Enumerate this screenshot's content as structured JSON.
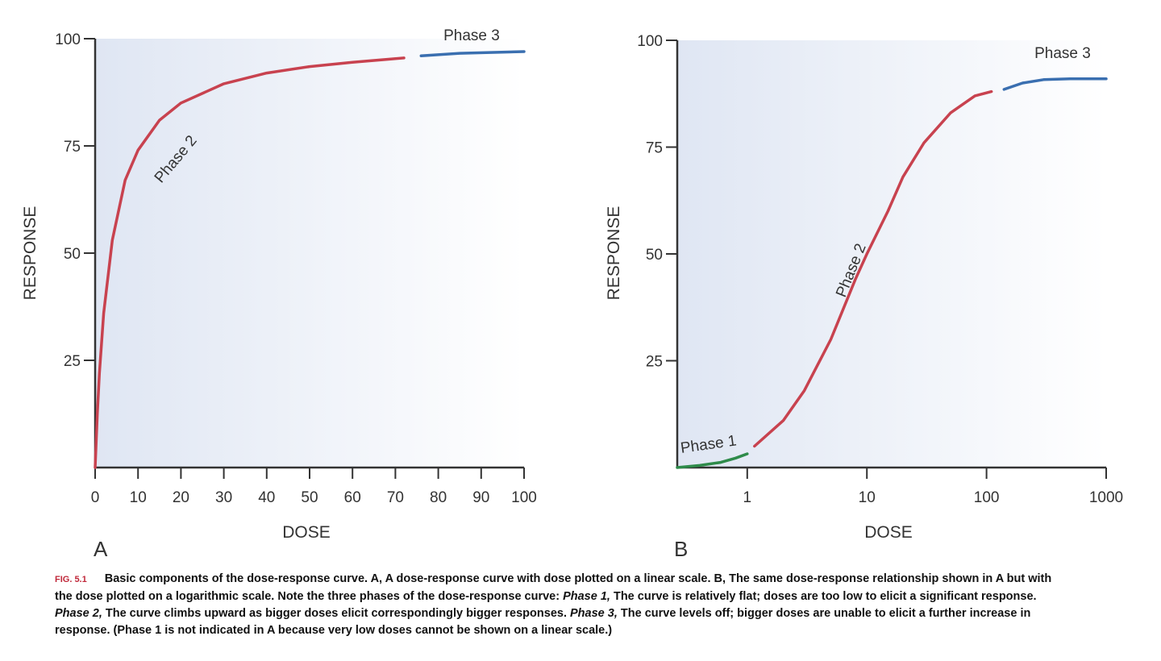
{
  "caption": {
    "fig_label": "FIG. 5.1",
    "text_1": "Basic components of the dose-response curve. A, A dose-response curve with dose plotted on a linear scale. B, The same dose-response relationship shown in A but with the dose plotted on a logarithmic scale. Note the three phases of the dose-response curve: ",
    "phase1": "Phase 1,",
    "text_2": " The curve is relatively flat; doses are too low to elicit a significant response. ",
    "phase2": "Phase 2,",
    "text_3": " The curve climbs upward as bigger doses elicit correspondingly bigger responses. ",
    "phase3": "Phase 3,",
    "text_4": " The curve levels off; bigger doses are unable to elicit a further increase in response. (Phase 1 is not indicated in A because very low doses cannot be shown on a linear scale.)"
  },
  "colors": {
    "phase1": "#2e8b4a",
    "phase2": "#c8424f",
    "phase3": "#3a6fb0",
    "background": "#dfe6f3"
  },
  "chart_data": [
    {
      "type": "line",
      "panel_label": "A",
      "xlabel": "DOSE",
      "ylabel": "RESPONSE",
      "xscale": "linear",
      "xlim": [
        0,
        100
      ],
      "ylim": [
        0,
        100
      ],
      "xticks": [
        "0",
        "10",
        "20",
        "30",
        "40",
        "50",
        "60",
        "70",
        "80",
        "90",
        "100"
      ],
      "yticks": [
        "25",
        "50",
        "75",
        "100"
      ],
      "grid": false,
      "series": [
        {
          "name": "Phase 2",
          "color": "#c8424f",
          "points": [
            [
              0,
              0
            ],
            [
              0.5,
              12.5
            ],
            [
              1,
              22
            ],
            [
              2,
              36
            ],
            [
              4,
              53
            ],
            [
              7,
              67
            ],
            [
              10,
              74
            ],
            [
              15,
              81
            ],
            [
              20,
              85
            ],
            [
              30,
              89.5
            ],
            [
              40,
              92
            ],
            [
              50,
              93.5
            ],
            [
              60,
              94.5
            ],
            [
              72,
              95.5
            ]
          ]
        },
        {
          "name": "Phase 3",
          "color": "#3a6fb0",
          "points": [
            [
              76,
              96
            ],
            [
              85,
              96.6
            ],
            [
              100,
              97
            ]
          ]
        }
      ]
    },
    {
      "type": "line",
      "panel_label": "B",
      "xlabel": "DOSE",
      "ylabel": "RESPONSE",
      "xscale": "log",
      "xlim": [
        0.26,
        1000
      ],
      "ylim": [
        0,
        100
      ],
      "xticks": [
        "1",
        "10",
        "100",
        "1000"
      ],
      "yticks": [
        "25",
        "50",
        "75",
        "100"
      ],
      "grid": false,
      "series": [
        {
          "name": "Phase 1",
          "color": "#2e8b4a",
          "points": [
            [
              0.26,
              0
            ],
            [
              0.4,
              0.5
            ],
            [
              0.6,
              1.2
            ],
            [
              0.8,
              2.2
            ],
            [
              1,
              3.2
            ]
          ]
        },
        {
          "name": "Phase 2",
          "color": "#c8424f",
          "points": [
            [
              1.15,
              5
            ],
            [
              2,
              11
            ],
            [
              3,
              18
            ],
            [
              5,
              30
            ],
            [
              8,
              44
            ],
            [
              10,
              50
            ],
            [
              15,
              60
            ],
            [
              20,
              68
            ],
            [
              30,
              76
            ],
            [
              50,
              83
            ],
            [
              80,
              87
            ],
            [
              110,
              88
            ]
          ]
        },
        {
          "name": "Phase 3",
          "color": "#3a6fb0",
          "points": [
            [
              140,
              88.5
            ],
            [
              200,
              90
            ],
            [
              300,
              90.8
            ],
            [
              500,
              91
            ],
            [
              1000,
              91
            ]
          ]
        }
      ]
    }
  ]
}
